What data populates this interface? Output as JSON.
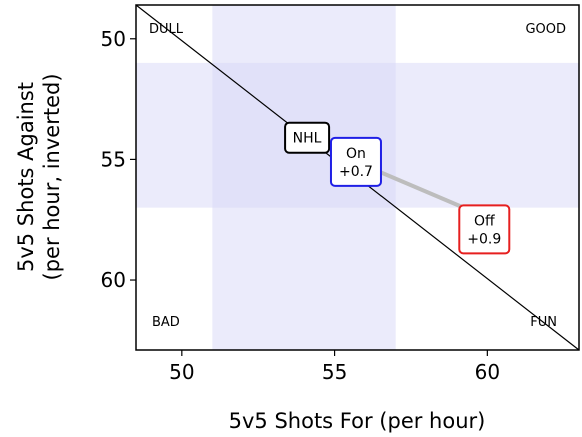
{
  "chart_data": {
    "type": "scatter",
    "xlabel": "5v5 Shots For (per hour)",
    "ylabel_lines": [
      "5v5 Shots Against",
      "(per hour, inverted)"
    ],
    "xlim": [
      48.5,
      63.0
    ],
    "ylim": [
      48.6,
      62.9
    ],
    "y_inverted": true,
    "x_ticks": [
      50,
      55,
      60
    ],
    "y_ticks": [
      50,
      55,
      60
    ],
    "grid": false,
    "x_band": [
      51.0,
      57.0
    ],
    "y_band": [
      51.0,
      57.0
    ],
    "diagonal": {
      "from": [
        48.5,
        48.6
      ],
      "to": [
        63.0,
        62.9
      ]
    },
    "connector": {
      "from": [
        55.7,
        55.1
      ],
      "to": [
        59.6,
        57.2
      ]
    },
    "corner_labels": {
      "top_left": "DULL",
      "top_right": "GOOD",
      "bottom_left": "BAD",
      "bottom_right": "FUN"
    },
    "points": [
      {
        "id": "nhl",
        "lines": [
          "NHL"
        ],
        "x": 54.1,
        "y": 54.1,
        "border": "#000000"
      },
      {
        "id": "on",
        "lines": [
          "On",
          "+0.7"
        ],
        "x": 55.7,
        "y": 55.1,
        "border": "#1f1fe6"
      },
      {
        "id": "off",
        "lines": [
          "Off",
          "+0.9"
        ],
        "x": 59.9,
        "y": 57.9,
        "border": "#e61f1f"
      }
    ],
    "colors": {
      "band": "#d8d8f8",
      "diagonal": "#000000",
      "connector": "#bdbdbd",
      "axes": "#000000"
    }
  }
}
